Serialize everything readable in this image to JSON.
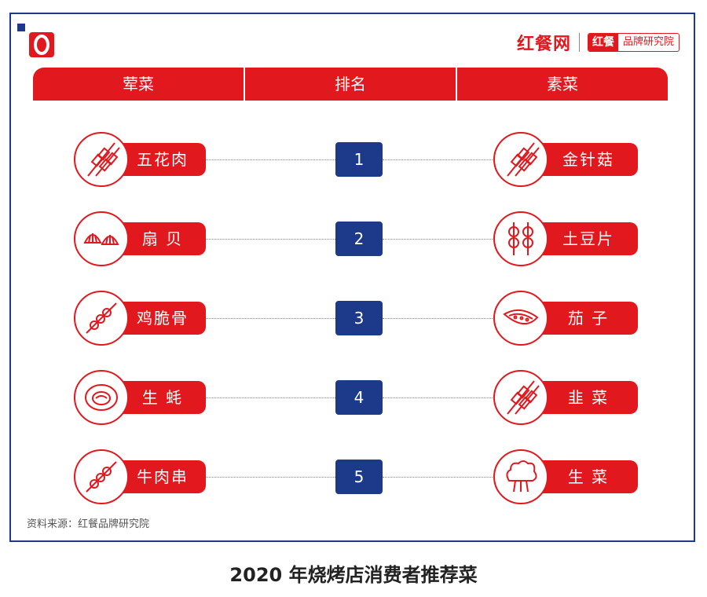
{
  "brand": {
    "main": "红餐网",
    "tag_a": "红餐",
    "tag_b": "品牌研究院"
  },
  "header": {
    "col_left": "荤菜",
    "col_mid": "排名",
    "col_right": "素菜"
  },
  "rows": [
    {
      "rank": "1",
      "left": "五花肉",
      "left_icon": "skewer-icon",
      "right": "金针菇",
      "right_icon": "skewer-icon"
    },
    {
      "rank": "2",
      "left": "扇 贝",
      "left_icon": "scallop-icon",
      "right": "土豆片",
      "right_icon": "potato-skewer-icon"
    },
    {
      "rank": "3",
      "left": "鸡脆骨",
      "left_icon": "meatball-skewer-icon",
      "right": "茄 子",
      "right_icon": "eggplant-icon"
    },
    {
      "rank": "4",
      "left": "生 蚝",
      "left_icon": "oyster-icon",
      "right": "韭 菜",
      "right_icon": "skewer-icon"
    },
    {
      "rank": "5",
      "left": "牛肉串",
      "left_icon": "meatball-skewer-icon",
      "right": "生 菜",
      "right_icon": "lettuce-icon"
    }
  ],
  "source": "资料来源：红餐品牌研究院",
  "caption": "2020 年烧烤店消费者推荐菜",
  "colors": {
    "accent_red": "#e1181e",
    "rank_blue": "#1d3a8a"
  }
}
